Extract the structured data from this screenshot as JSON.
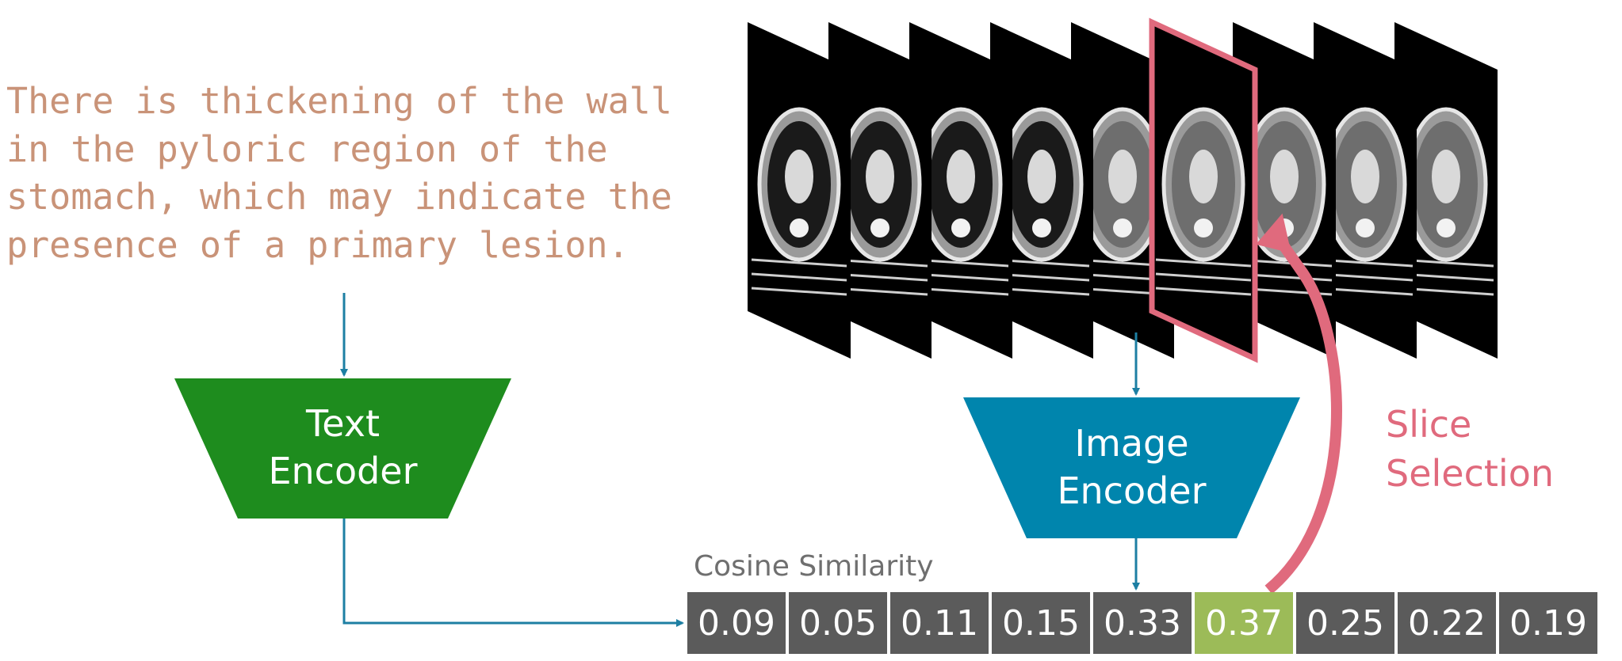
{
  "query_text": [
    "There is thickening of the wall",
    "in the pyloric region of the",
    "stomach, which may indicate the",
    "presence of a primary lesion."
  ],
  "text_encoder": {
    "line1": "Text",
    "line2": "Encoder"
  },
  "image_encoder": {
    "line1": "Image",
    "line2": "Encoder"
  },
  "similarity": {
    "label": "Cosine Similarity",
    "scores": [
      "0.09",
      "0.05",
      "0.11",
      "0.15",
      "0.33",
      "0.37",
      "0.25",
      "0.22",
      "0.19"
    ],
    "selected_index": 5
  },
  "slice_selection": {
    "line1": "Slice",
    "line2": "Selection"
  },
  "colors": {
    "query_text": "#c99378",
    "text_encoder": "#1e8c1e",
    "image_encoder": "#0085ad",
    "arrows": "#1d7fa3",
    "selection": "#e06a7d",
    "score_box": "#5b5b5b",
    "score_selected": "#9cbb58"
  }
}
